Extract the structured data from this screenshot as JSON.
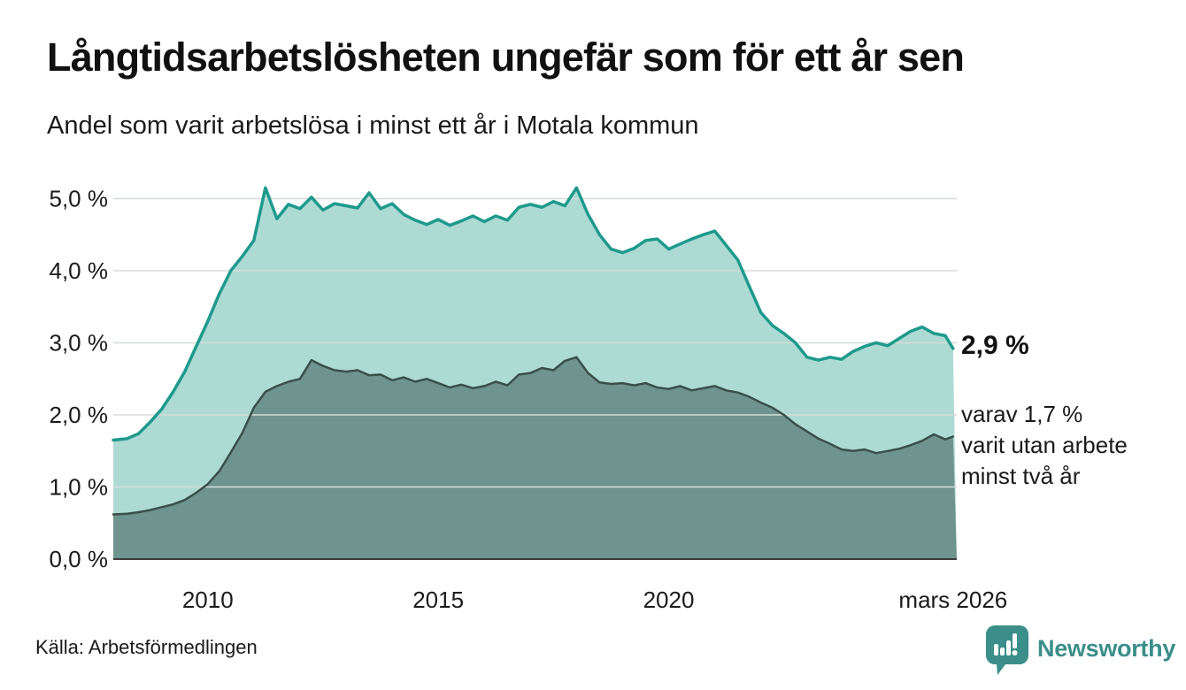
{
  "header": {
    "title": "Långtidsarbetslösheten ungefär som för ett år sen",
    "subtitle": "Andel som varit arbetslösa i minst ett år i Motala kommun"
  },
  "annotations": {
    "latest_total": "2,9 %",
    "secondary_lines": [
      "varav 1,7 %",
      "varit utan arbete",
      "minst två år"
    ]
  },
  "footer": {
    "source": "Källa: Arbetsförmedlingen",
    "brand": "Newsworthy"
  },
  "colors": {
    "accent_line": "#1e9a8c",
    "fill_light": "#aedad4",
    "dark_line": "#3a4f4a",
    "fill_dark": "#6f948f",
    "gridline": "#d6dbd9",
    "axis_line": "#3c3c3c",
    "text": "#1a1a1a",
    "brand": "#3b8e89"
  },
  "chart_data": {
    "type": "area",
    "title": "Långtidsarbetslösheten ungefär som för ett år sen",
    "subtitle": "Andel som varit arbetslösa i minst ett år i Motala kommun",
    "ylabel": "",
    "xlabel": "",
    "grid": "horizontal",
    "legend": "none",
    "ylim": [
      0,
      5.35
    ],
    "xlim": [
      2007.95,
      2026.25
    ],
    "x_years": [
      2007.95,
      2008.25,
      2008.5,
      2008.75,
      2009,
      2009.25,
      2009.5,
      2009.75,
      2010,
      2010.25,
      2010.5,
      2010.75,
      2011,
      2011.25,
      2011.5,
      2011.75,
      2012,
      2012.25,
      2012.5,
      2012.75,
      2013,
      2013.25,
      2013.5,
      2013.75,
      2014,
      2014.25,
      2014.5,
      2014.75,
      2015,
      2015.25,
      2015.5,
      2015.75,
      2016,
      2016.25,
      2016.5,
      2016.75,
      2017,
      2017.25,
      2017.5,
      2017.75,
      2018,
      2018.25,
      2018.5,
      2018.75,
      2019,
      2019.25,
      2019.5,
      2019.75,
      2020,
      2020.25,
      2020.5,
      2020.75,
      2021,
      2021.25,
      2021.5,
      2021.75,
      2022,
      2022.25,
      2022.5,
      2022.75,
      2023,
      2023.25,
      2023.5,
      2023.75,
      2024,
      2024.25,
      2024.5,
      2024.75,
      2025,
      2025.25,
      2025.5,
      2025.75,
      2026,
      2026.17
    ],
    "series": [
      {
        "name": "Andel arbetslösa minst ett år",
        "last_value_label": "2,9 %",
        "line_color": "#1e9a8c",
        "fill_color": "#aedad4",
        "values": [
          1.65,
          1.67,
          1.74,
          1.9,
          2.08,
          2.32,
          2.6,
          2.95,
          3.3,
          3.68,
          4.0,
          4.2,
          4.42,
          5.15,
          4.72,
          4.92,
          4.86,
          5.02,
          4.84,
          4.93,
          4.9,
          4.87,
          5.08,
          4.86,
          4.93,
          4.78,
          4.7,
          4.64,
          4.71,
          4.63,
          4.69,
          4.76,
          4.68,
          4.76,
          4.7,
          4.88,
          4.92,
          4.88,
          4.96,
          4.9,
          5.15,
          4.78,
          4.5,
          4.3,
          4.25,
          4.31,
          4.42,
          4.44,
          4.3,
          4.37,
          4.44,
          4.5,
          4.55,
          4.35,
          4.15,
          3.78,
          3.42,
          3.24,
          3.13,
          3.0,
          2.8,
          2.76,
          2.8,
          2.77,
          2.88,
          2.95,
          3.0,
          2.96,
          3.06,
          3.16,
          3.22,
          3.13,
          3.1,
          2.92
        ]
      },
      {
        "name": "varav arbetslösa minst två år",
        "last_value_label": "1,7 %",
        "line_color": "#3a4f4a",
        "fill_color": "#6f948f",
        "values": [
          0.62,
          0.63,
          0.65,
          0.68,
          0.72,
          0.76,
          0.82,
          0.92,
          1.04,
          1.22,
          1.48,
          1.75,
          2.1,
          2.32,
          2.4,
          2.46,
          2.5,
          2.76,
          2.68,
          2.62,
          2.6,
          2.62,
          2.55,
          2.56,
          2.48,
          2.52,
          2.46,
          2.5,
          2.44,
          2.38,
          2.42,
          2.37,
          2.4,
          2.46,
          2.41,
          2.56,
          2.58,
          2.65,
          2.62,
          2.75,
          2.8,
          2.58,
          2.45,
          2.43,
          2.44,
          2.41,
          2.44,
          2.38,
          2.36,
          2.4,
          2.34,
          2.37,
          2.4,
          2.34,
          2.31,
          2.25,
          2.17,
          2.1,
          2.0,
          1.87,
          1.77,
          1.67,
          1.6,
          1.52,
          1.5,
          1.52,
          1.47,
          1.5,
          1.53,
          1.58,
          1.64,
          1.73,
          1.66,
          1.7
        ]
      }
    ],
    "y_ticks": [
      {
        "value": 0,
        "label": "0,0 %"
      },
      {
        "value": 1,
        "label": "1,0 %"
      },
      {
        "value": 2,
        "label": "2,0 %"
      },
      {
        "value": 3,
        "label": "3,0 %"
      },
      {
        "value": 4,
        "label": "4,0 %"
      },
      {
        "value": 5,
        "label": "5,0 %"
      }
    ],
    "x_ticks": [
      {
        "x": 2010,
        "label": "2010"
      },
      {
        "x": 2015,
        "label": "2015"
      },
      {
        "x": 2020,
        "label": "2020"
      },
      {
        "x": 2026.17,
        "label": "mars 2026"
      }
    ]
  }
}
